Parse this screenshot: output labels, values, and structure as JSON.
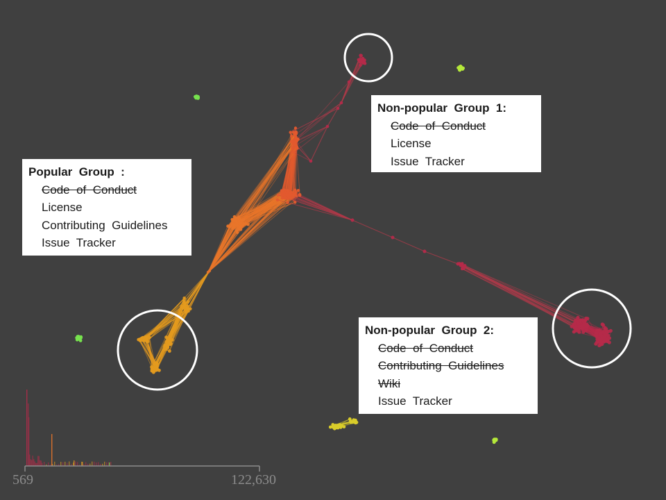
{
  "colors": {
    "background": "#404040",
    "popular": "#e8752a",
    "popular_core": "#e25a2e",
    "popular_tail": "#e39a1f",
    "nonpopular_1": "#b52a4a",
    "nonpopular_2": "#b52a4a",
    "bridge_edge": "#b23a4a",
    "isolated_green": "#77e24e",
    "isolated_lime": "#b5e83a",
    "isolated_yellow": "#d8cc2a",
    "callout_bg": "#ffffff",
    "highlight_ring": "#ffffff"
  },
  "callouts": {
    "popular": {
      "title": "Popular  Group  :",
      "items": [
        {
          "label": "Code  of  Conduct",
          "struck": true
        },
        {
          "label": "License",
          "struck": false
        },
        {
          "label": "Contributing  Guidelines",
          "struck": false
        },
        {
          "label": "Issue  Tracker",
          "struck": false
        }
      ]
    },
    "nonpopular_1": {
      "title": "Non-popular  Group  1:",
      "items": [
        {
          "label": "Code  of  Conduct",
          "struck": true
        },
        {
          "label": "License",
          "struck": false
        },
        {
          "label": "Issue  Tracker",
          "struck": false
        }
      ]
    },
    "nonpopular_2": {
      "title": "Non-popular  Group  2:",
      "items": [
        {
          "label": "Code  of  Conduct",
          "struck": true
        },
        {
          "label": "Contributing  Guidelines",
          "struck": true
        },
        {
          "label": "Wiki",
          "struck": true
        },
        {
          "label": "Issue  Tracker",
          "struck": false
        }
      ]
    }
  },
  "histogram": {
    "axis_min_label": "569",
    "axis_max_label": "122,630"
  }
}
